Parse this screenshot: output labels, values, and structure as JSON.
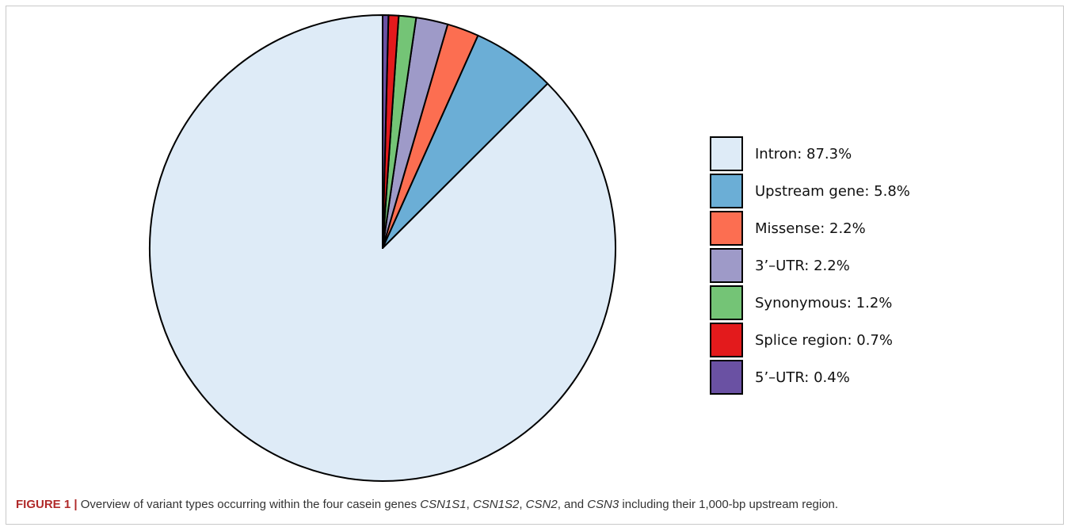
{
  "chart_data": {
    "type": "pie",
    "slices": [
      {
        "label": "Intron: 87.3%",
        "value": 87.3,
        "color": "#deebf7"
      },
      {
        "label": "Upstream gene: 5.8%",
        "value": 5.8,
        "color": "#6baed6"
      },
      {
        "label": "Missense: 2.2%",
        "value": 2.2,
        "color": "#fc6e51"
      },
      {
        "label": "3’–UTR: 2.2%",
        "value": 2.2,
        "color": "#9e9ac8"
      },
      {
        "label": "Synonymous: 1.2%",
        "value": 1.2,
        "color": "#74c476"
      },
      {
        "label": "Splice region: 0.7%",
        "value": 0.7,
        "color": "#e31a1c"
      },
      {
        "label": "5’–UTR: 0.4%",
        "value": 0.4,
        "color": "#6a51a3"
      }
    ],
    "start": "12 o'clock",
    "direction": "counterclockwise",
    "legend_position": "right"
  },
  "caption": {
    "label": "FIGURE 1 |",
    "text_1": " Overview of variant types occurring within the four casein genes ",
    "gene_1": "CSN1S1",
    "sep_1": ", ",
    "gene_2": "CSN1S2",
    "sep_2": ", ",
    "gene_3": "CSN2",
    "sep_3": ", and ",
    "gene_4": "CSN3",
    "text_2": " including their 1,000-bp upstream region."
  }
}
